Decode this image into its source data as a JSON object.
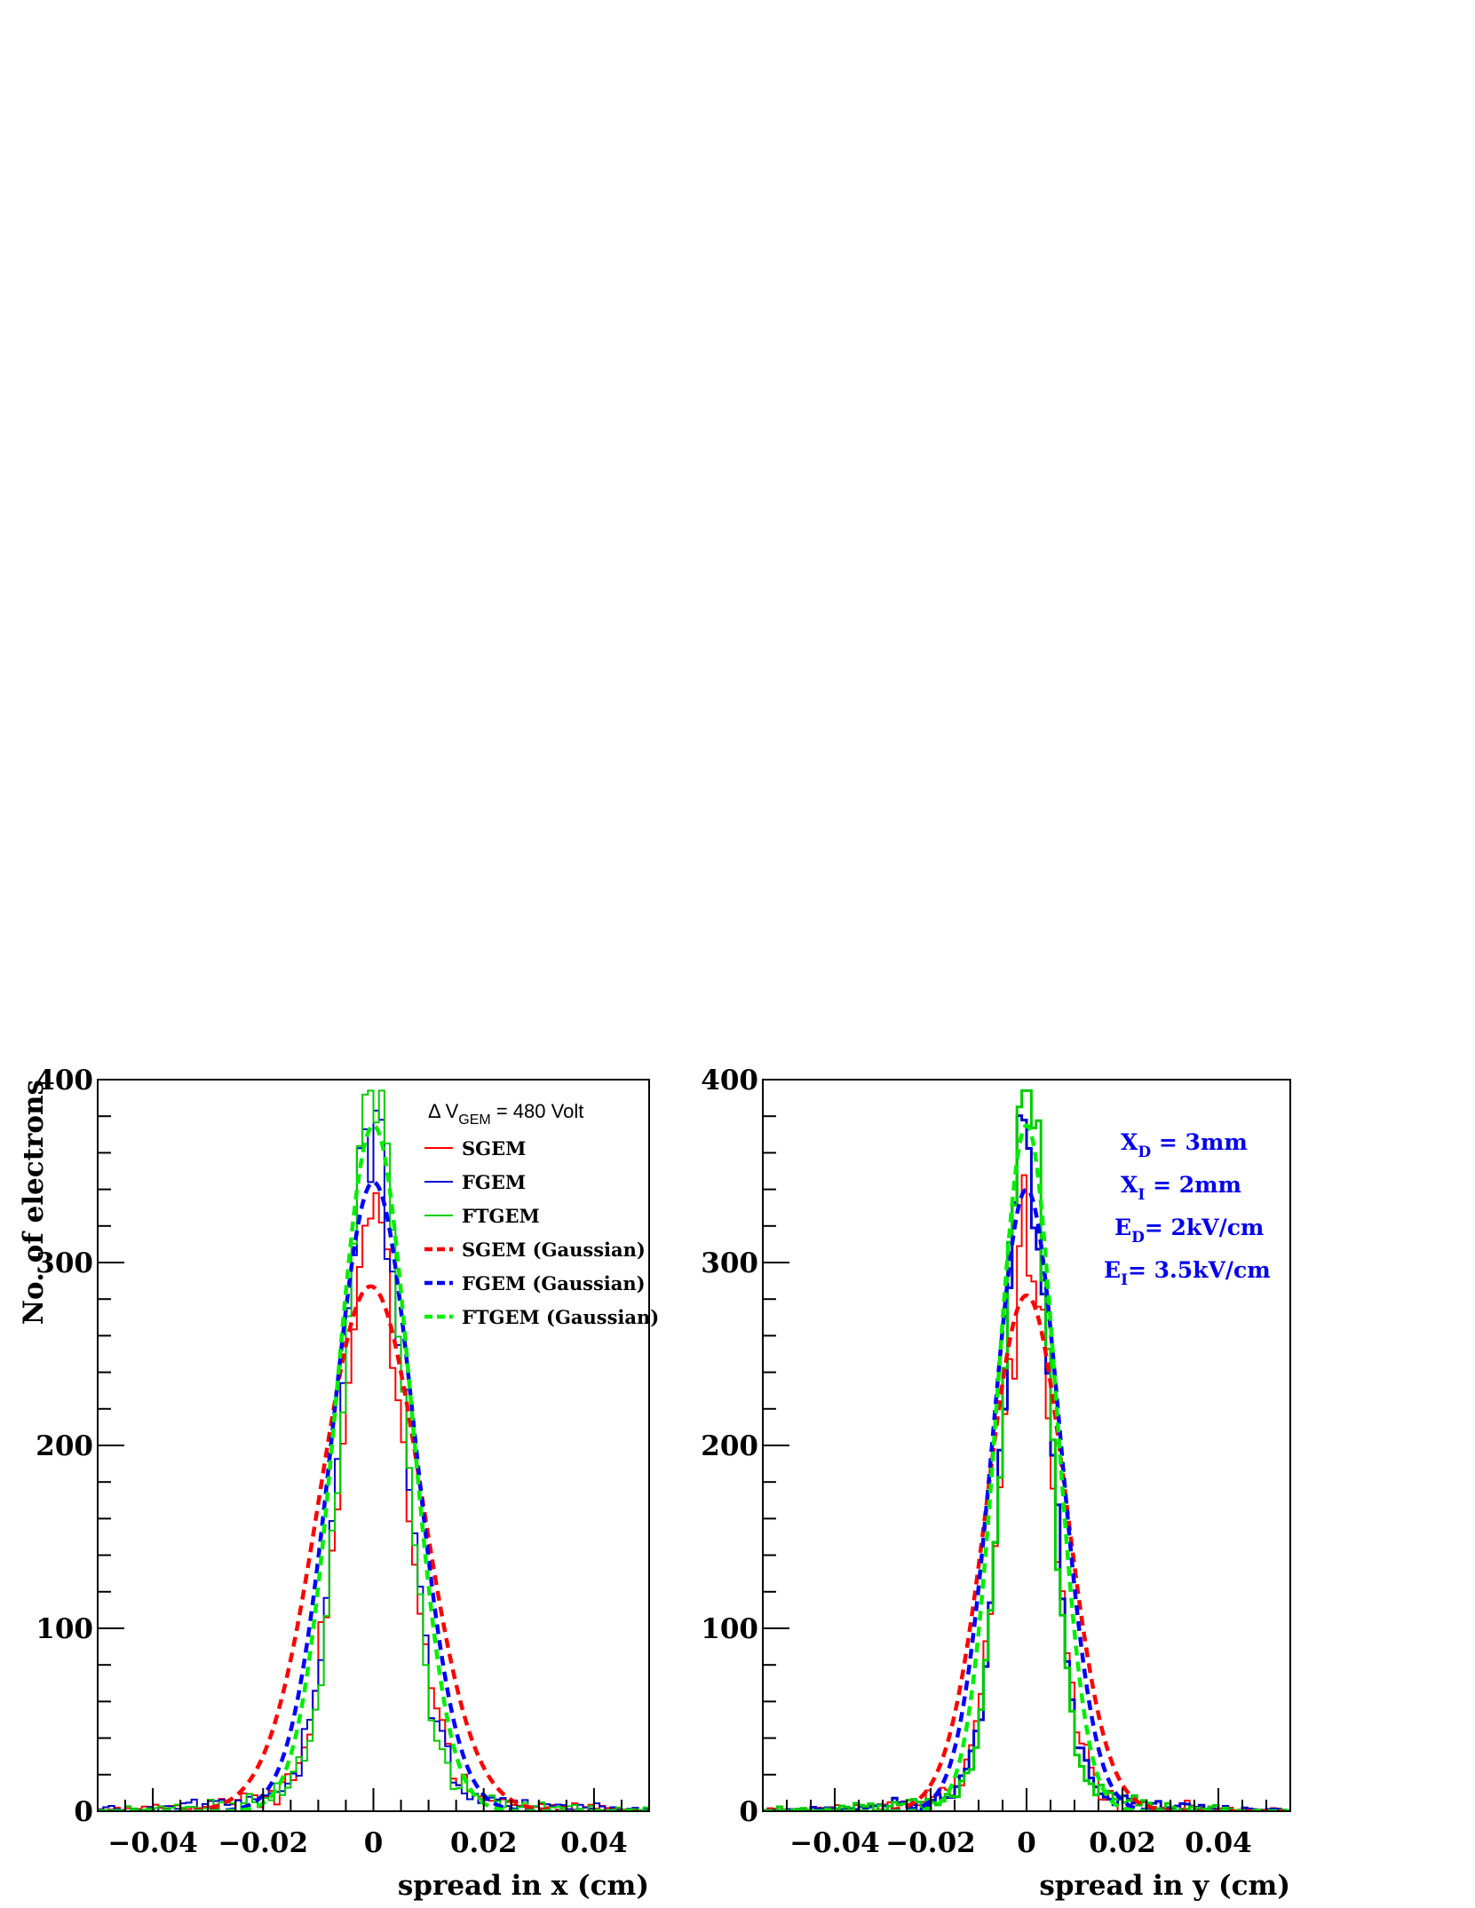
{
  "chart_data": [
    {
      "type": "line",
      "ylabel": "No. of electrons",
      "xlabel": "spread in x (cm)",
      "xlim": [
        -0.05,
        0.05
      ],
      "ylim": [
        0,
        400
      ],
      "xticks": [
        "−0.04",
        "−0.02",
        "0",
        "0.02",
        "0.04"
      ],
      "yticks": [
        "0",
        "100",
        "200",
        "300",
        "400"
      ],
      "grid": false,
      "legend": {
        "placement": "top-right",
        "header": {
          "prefix": "Δ V",
          "sub": "GEM",
          "suffix": " = 480 Volt"
        }
      },
      "series": [
        {
          "name": "SGEM",
          "kind": "histogram",
          "color": "#ff0000",
          "fwhm_cm": 0.0137,
          "peak": 289
        },
        {
          "name": "FGEM",
          "kind": "histogram",
          "color": "#0000cc",
          "fwhm_cm": 0.0127,
          "peak": 345
        },
        {
          "name": "FTGEM",
          "kind": "histogram",
          "color": "#00cc00",
          "fwhm_cm": 0.0117,
          "peak": 373
        },
        {
          "name": "SGEM (Gaussian)",
          "kind": "gaussian",
          "color": "#ff0000",
          "mean": -0.0005,
          "sigma": 0.0092,
          "amplitude": 287
        },
        {
          "name": "FGEM (Gaussian)",
          "kind": "gaussian",
          "color": "#0000ff",
          "mean": 0.0,
          "sigma": 0.0074,
          "amplitude": 344
        },
        {
          "name": "FTGEM (Gaussian)",
          "kind": "gaussian",
          "color": "#00ee00",
          "mean": 0.0,
          "sigma": 0.0067,
          "amplitude": 375
        }
      ]
    },
    {
      "type": "line",
      "xlabel": "spread in y (cm)",
      "xlim": [
        -0.055,
        0.055
      ],
      "ylim": [
        0,
        400
      ],
      "xticks": [
        "−0.04",
        "−0.02",
        "0",
        "0.02",
        "0.04"
      ],
      "yticks": [
        "0",
        "100",
        "200",
        "300",
        "400"
      ],
      "grid": false,
      "annotations": [
        {
          "main": "X",
          "sub": "D",
          "rest": " = 3mm"
        },
        {
          "main": "X",
          "sub": "I",
          "rest": " = 2mm"
        },
        {
          "main": "E",
          "sub": "D",
          "rest": "= 2kV/cm"
        },
        {
          "main": "E",
          "sub": "I",
          "rest": "= 3.5kV/cm"
        }
      ],
      "series": [
        {
          "kind": "histogram",
          "color": "#ff0000",
          "fwhm_cm": 0.0125,
          "peak": 283
        },
        {
          "kind": "histogram",
          "color": "#0000cc",
          "fwhm_cm": 0.0112,
          "peak": 340
        },
        {
          "kind": "histogram",
          "color": "#00cc00",
          "fwhm_cm": 0.0105,
          "peak": 378
        },
        {
          "kind": "gaussian",
          "color": "#ff0000",
          "mean": 0.0,
          "sigma": 0.0082,
          "amplitude": 282
        },
        {
          "kind": "gaussian",
          "color": "#0000ff",
          "mean": 0.0,
          "sigma": 0.007,
          "amplitude": 340
        },
        {
          "kind": "gaussian",
          "color": "#00ee00",
          "mean": 0.0,
          "sigma": 0.0061,
          "amplitude": 375
        }
      ]
    }
  ]
}
